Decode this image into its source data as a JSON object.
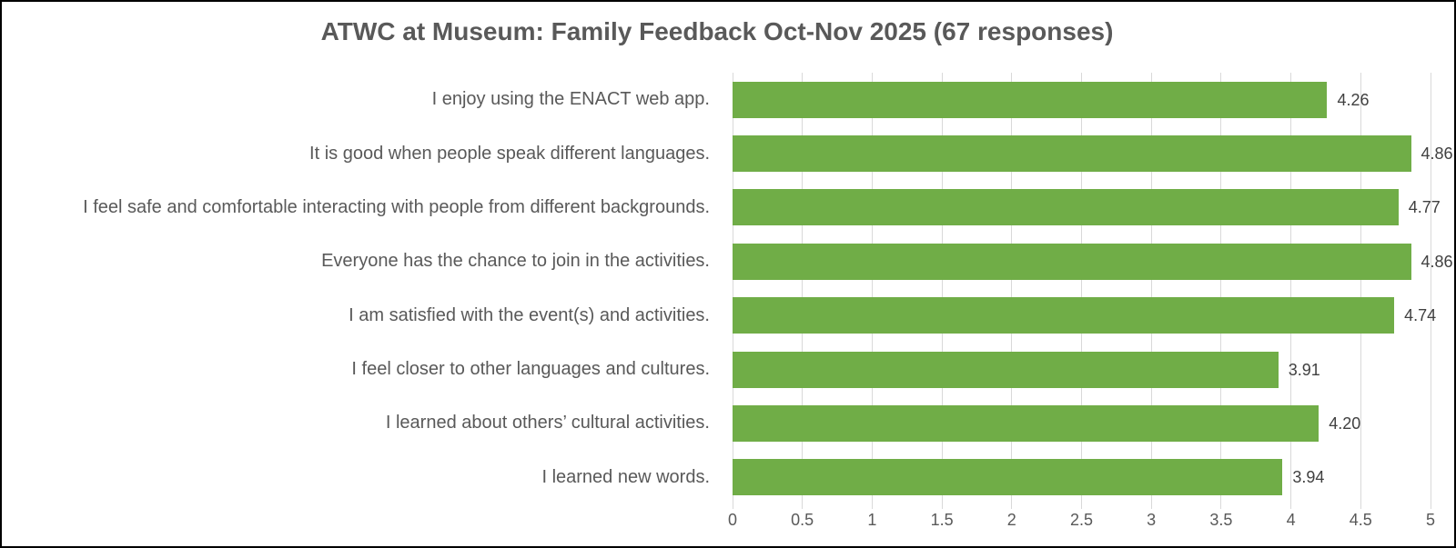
{
  "title": "ATWC at Museum: Family Feedback Oct-Nov 2025 (67 responses)",
  "chart_data": {
    "type": "bar",
    "orientation": "horizontal",
    "title": "ATWC at Museum: Family Feedback Oct-Nov 2025 (67 responses)",
    "categories": [
      "I enjoy using the ENACT web app.",
      "It is good when people speak different languages.",
      "I feel safe and comfortable interacting with people from different backgrounds.",
      "Everyone has the chance to join in the activities.",
      "I am satisfied with the event(s) and activities.",
      "I feel closer to other languages and cultures.",
      "I learned about others’ cultural activities.",
      "I learned new words."
    ],
    "values": [
      4.26,
      4.86,
      4.77,
      4.86,
      4.74,
      3.91,
      4.2,
      3.94
    ],
    "value_labels": [
      "4.26",
      "4.86",
      "4.77",
      "4.86",
      "4.74",
      "3.91",
      "4.20",
      "3.94"
    ],
    "xlabel": "",
    "ylabel": "",
    "xlim": [
      0,
      5
    ],
    "x_ticks": [
      0,
      0.5,
      1,
      1.5,
      2,
      2.5,
      3,
      3.5,
      4,
      4.5,
      5
    ],
    "x_tick_labels": [
      "0",
      "0.5",
      "1",
      "1.5",
      "2",
      "2.5",
      "3",
      "3.5",
      "4",
      "4.5",
      "5"
    ],
    "grid": true,
    "legend": "none",
    "colors": {
      "bar": "#70AD47",
      "gridline": "#D9D9D9",
      "title_text": "#595959",
      "axis_text": "#595959",
      "value_label_text": "#404040",
      "border": "#000000",
      "background": "#FFFFFF"
    }
  }
}
